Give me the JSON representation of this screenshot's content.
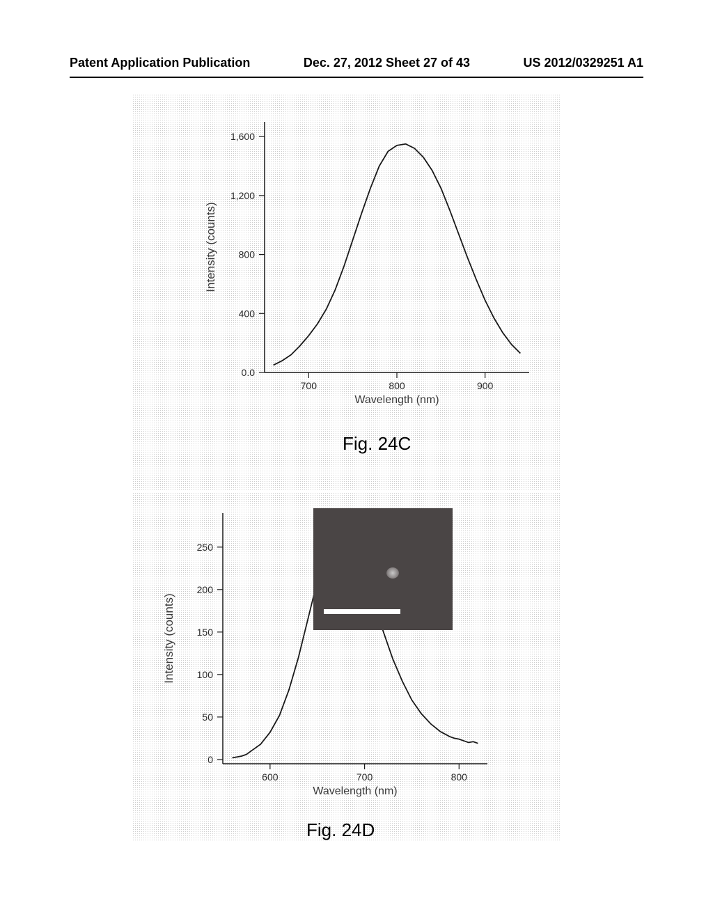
{
  "header": {
    "left": "Patent Application Publication",
    "center": "Dec. 27, 2012  Sheet 27 of 43",
    "right": "US 2012/0329251 A1"
  },
  "chart1": {
    "type": "line",
    "title": "Fig. 24C",
    "title_fontsize": 26,
    "ylabel": "Intensity (counts)",
    "xlabel": "Wavelength (nm)",
    "xlim": [
      650,
      950
    ],
    "ylim": [
      0,
      1700
    ],
    "xticks": [
      700,
      800,
      900
    ],
    "yticks": [
      0.0,
      400,
      800,
      1200,
      1600
    ],
    "ytick_labels": [
      "0.0",
      "400",
      "800",
      "1,200",
      "1,600"
    ],
    "line_color": "#1a1a1a",
    "line_width": 1.8,
    "background_color": "#ffffff",
    "data": [
      [
        660,
        50
      ],
      [
        670,
        80
      ],
      [
        680,
        120
      ],
      [
        690,
        180
      ],
      [
        700,
        250
      ],
      [
        710,
        330
      ],
      [
        720,
        430
      ],
      [
        730,
        560
      ],
      [
        740,
        720
      ],
      [
        750,
        900
      ],
      [
        760,
        1080
      ],
      [
        770,
        1250
      ],
      [
        780,
        1400
      ],
      [
        790,
        1500
      ],
      [
        800,
        1540
      ],
      [
        810,
        1550
      ],
      [
        820,
        1520
      ],
      [
        830,
        1460
      ],
      [
        840,
        1370
      ],
      [
        850,
        1250
      ],
      [
        860,
        1100
      ],
      [
        870,
        940
      ],
      [
        880,
        780
      ],
      [
        890,
        630
      ],
      [
        900,
        490
      ],
      [
        910,
        370
      ],
      [
        920,
        270
      ],
      [
        930,
        190
      ],
      [
        940,
        130
      ]
    ]
  },
  "chart2": {
    "type": "line",
    "title": "Fig. 24D",
    "title_fontsize": 26,
    "ylabel": "Intensity (counts)",
    "xlabel": "Wavelength (nm)",
    "xlim": [
      550,
      830
    ],
    "ylim": [
      -5,
      290
    ],
    "xticks": [
      600,
      700,
      800
    ],
    "yticks": [
      0,
      50,
      100,
      150,
      200,
      250
    ],
    "ytick_labels": [
      "0",
      "50",
      "100",
      "150",
      "200",
      "250"
    ],
    "line_color": "#1a1a1a",
    "line_width": 1.8,
    "background_color": "#ffffff",
    "data": [
      [
        560,
        2
      ],
      [
        570,
        4
      ],
      [
        575,
        6
      ],
      [
        580,
        10
      ],
      [
        590,
        18
      ],
      [
        600,
        32
      ],
      [
        610,
        52
      ],
      [
        620,
        82
      ],
      [
        630,
        120
      ],
      [
        640,
        165
      ],
      [
        650,
        210
      ],
      [
        660,
        245
      ],
      [
        665,
        262
      ],
      [
        670,
        272
      ],
      [
        675,
        275
      ],
      [
        680,
        272
      ],
      [
        685,
        264
      ],
      [
        690,
        251
      ],
      [
        700,
        220
      ],
      [
        710,
        185
      ],
      [
        720,
        150
      ],
      [
        730,
        118
      ],
      [
        740,
        92
      ],
      [
        750,
        70
      ],
      [
        760,
        54
      ],
      [
        770,
        42
      ],
      [
        780,
        33
      ],
      [
        790,
        27
      ],
      [
        795,
        25
      ],
      [
        800,
        24
      ],
      [
        805,
        22
      ],
      [
        810,
        20
      ],
      [
        815,
        21
      ],
      [
        820,
        19
      ]
    ],
    "inset": {
      "background_color": "#4a4545",
      "scalebar_color": "#ffffff"
    }
  }
}
